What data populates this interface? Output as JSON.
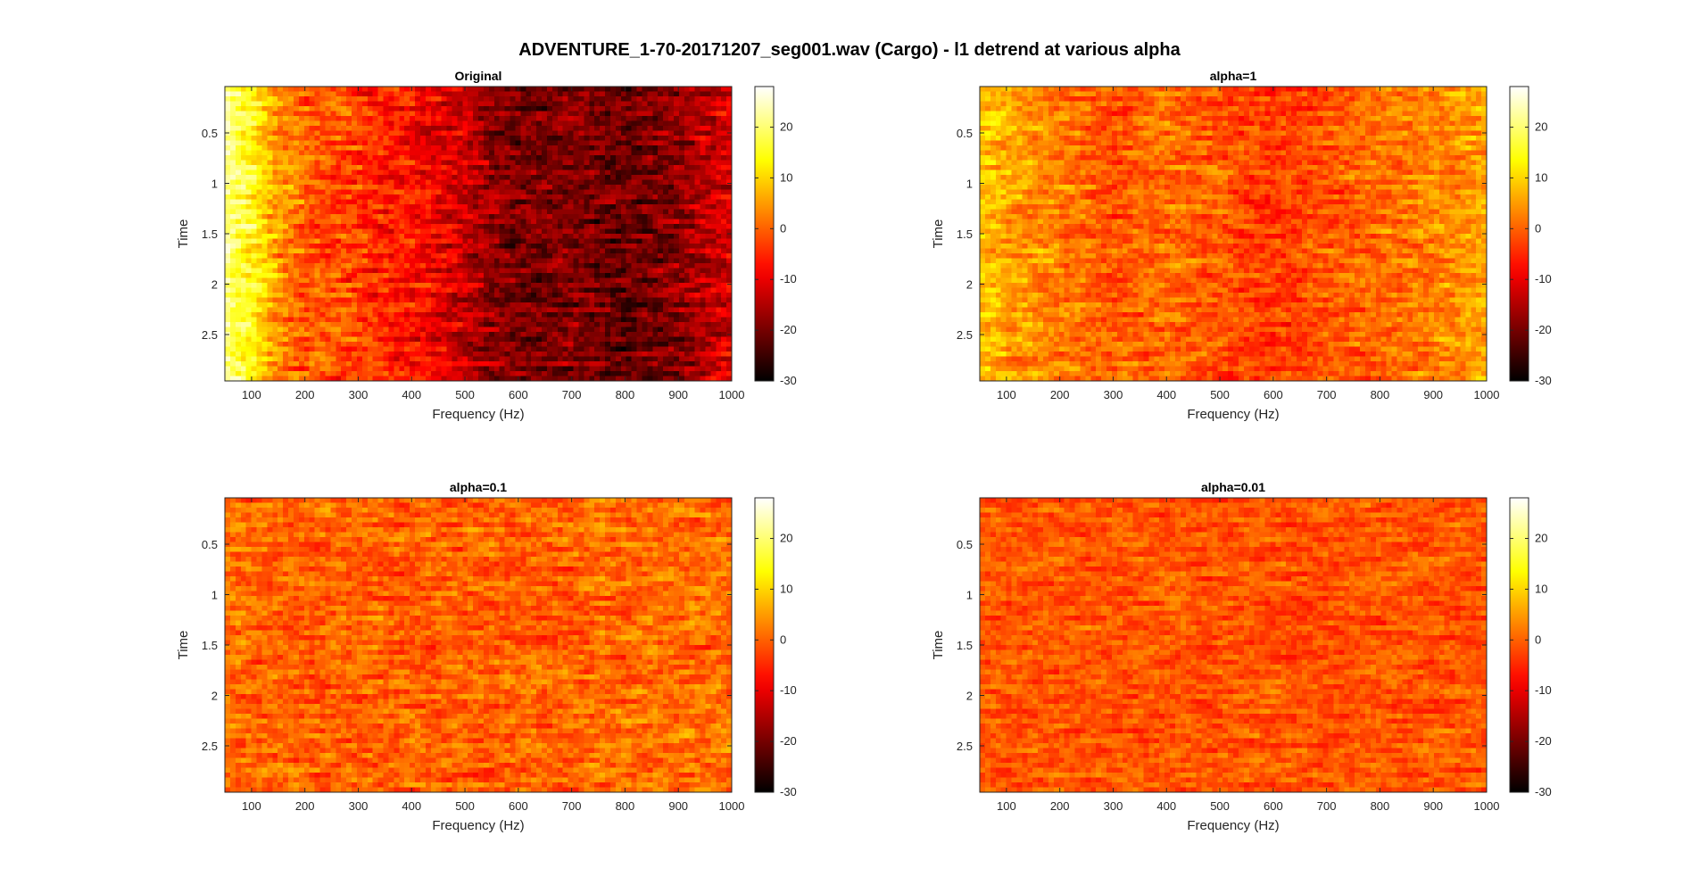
{
  "figure": {
    "title": "ADVENTURE_1-70-20171207_seg001.wav (Cargo) - l1 detrend at various alpha",
    "colormap": "hot"
  },
  "chart_data": [
    {
      "type": "heatmap",
      "title": "Original",
      "xlabel": "Frequency (Hz)",
      "ylabel": "Time",
      "xlim": [
        50,
        1000
      ],
      "ylim": [
        0.04,
        2.96
      ],
      "y_reversed": true,
      "xticks": [
        100,
        200,
        300,
        400,
        500,
        600,
        700,
        800,
        900,
        1000
      ],
      "yticks": [
        0.5,
        1,
        1.5,
        2,
        2.5
      ],
      "ytick_labels": [
        "0.5",
        "1",
        "1.5",
        "2",
        "2.5"
      ],
      "clim": [
        -30,
        28
      ],
      "colorbar_ticks": [
        20,
        10,
        0,
        -10,
        -20,
        -30
      ],
      "profile": {
        "freq": [
          50,
          100,
          150,
          200,
          300,
          400,
          500,
          550,
          600,
          700,
          800,
          900,
          1000
        ],
        "level": [
          22,
          14,
          4,
          0,
          -3,
          -7,
          -13,
          -18,
          -20,
          -19,
          -22,
          -18,
          -11
        ]
      },
      "noise": 7,
      "seed": 11
    },
    {
      "type": "heatmap",
      "title": "alpha=1",
      "xlabel": "Frequency (Hz)",
      "ylabel": "Time",
      "xlim": [
        50,
        1000
      ],
      "ylim": [
        0.04,
        2.96
      ],
      "y_reversed": true,
      "xticks": [
        100,
        200,
        300,
        400,
        500,
        600,
        700,
        800,
        900,
        1000
      ],
      "yticks": [
        0.5,
        1,
        1.5,
        2,
        2.5
      ],
      "ytick_labels": [
        "0.5",
        "1",
        "1.5",
        "2",
        "2.5"
      ],
      "clim": [
        -30,
        28
      ],
      "colorbar_ticks": [
        20,
        10,
        0,
        -10,
        -20,
        -30
      ],
      "profile": {
        "freq": [
          50,
          100,
          200,
          300,
          400,
          500,
          600,
          700,
          800,
          900,
          1000
        ],
        "level": [
          9,
          6,
          3,
          -1,
          1,
          -1,
          -4,
          -1,
          1,
          3,
          6
        ]
      },
      "noise": 6,
      "seed": 23
    },
    {
      "type": "heatmap",
      "title": "alpha=0.1",
      "xlabel": "Frequency (Hz)",
      "ylabel": "Time",
      "xlim": [
        50,
        1000
      ],
      "ylim": [
        0.04,
        2.96
      ],
      "y_reversed": true,
      "xticks": [
        100,
        200,
        300,
        400,
        500,
        600,
        700,
        800,
        900,
        1000
      ],
      "yticks": [
        0.5,
        1,
        1.5,
        2,
        2.5
      ],
      "ytick_labels": [
        "0.5",
        "1",
        "1.5",
        "2",
        "2.5"
      ],
      "clim": [
        -30,
        28
      ],
      "colorbar_ticks": [
        20,
        10,
        0,
        -10,
        -20,
        -30
      ],
      "profile": {
        "freq": [
          50,
          200,
          400,
          600,
          800,
          1000
        ],
        "level": [
          1,
          0,
          0,
          0,
          1,
          1
        ]
      },
      "noise": 6,
      "seed": 37
    },
    {
      "type": "heatmap",
      "title": "alpha=0.01",
      "xlabel": "Frequency (Hz)",
      "ylabel": "Time",
      "xlim": [
        50,
        1000
      ],
      "ylim": [
        0.04,
        2.96
      ],
      "y_reversed": true,
      "xticks": [
        100,
        200,
        300,
        400,
        500,
        600,
        700,
        800,
        900,
        1000
      ],
      "yticks": [
        0.5,
        1,
        1.5,
        2,
        2.5
      ],
      "ytick_labels": [
        "0.5",
        "1",
        "1.5",
        "2",
        "2.5"
      ],
      "clim": [
        -30,
        28
      ],
      "colorbar_ticks": [
        20,
        10,
        0,
        -10,
        -20,
        -30
      ],
      "profile": {
        "freq": [
          50,
          1000
        ],
        "level": [
          -1,
          -1
        ]
      },
      "noise": 5,
      "seed": 53
    }
  ]
}
